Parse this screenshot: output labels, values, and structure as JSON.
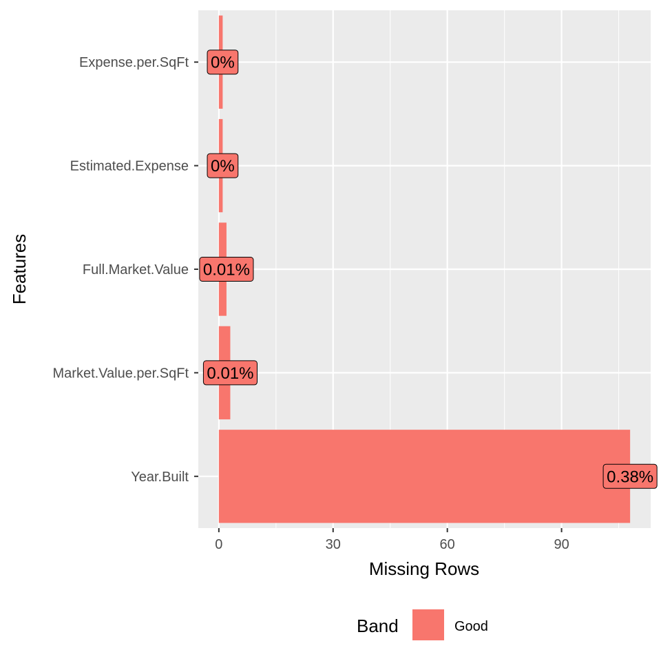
{
  "chart_data": {
    "type": "bar",
    "orientation": "horizontal",
    "categories": [
      "Expense.per.SqFt",
      "Estimated.Expense",
      "Full.Market.Value",
      "Market.Value.per.SqFt",
      "Year.Built"
    ],
    "values": [
      1,
      1,
      2,
      3,
      108
    ],
    "data_labels": [
      "0%",
      "0%",
      "0.01%",
      "0.01%",
      "0.38%"
    ],
    "xlabel": "Missing Rows",
    "ylabel": "Features",
    "xticks": [
      0,
      30,
      60,
      90
    ],
    "xlim": [
      -5.4,
      113.4
    ],
    "grid": true,
    "legend": {
      "title": "Band",
      "position": "bottom",
      "entries": [
        {
          "label": "Good",
          "color": "#F8766D"
        }
      ]
    },
    "colors": {
      "bar": "#F8766D",
      "panel": "#EBEBEB",
      "grid": "#FFFFFF"
    }
  }
}
